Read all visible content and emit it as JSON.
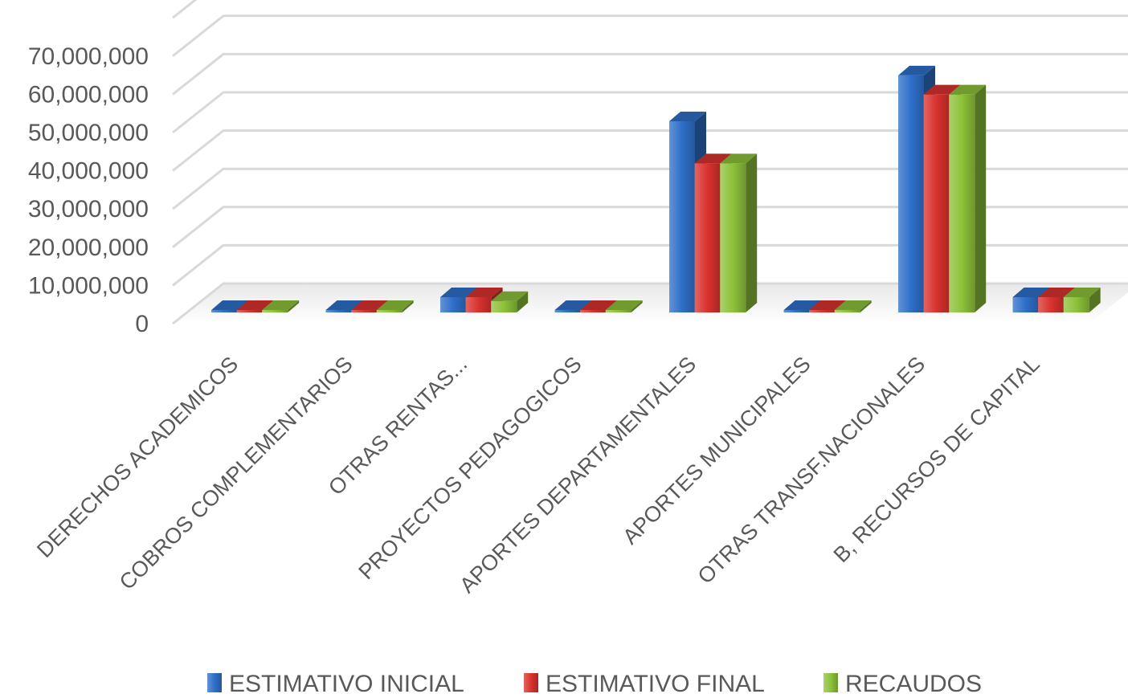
{
  "chart_data": {
    "type": "bar",
    "categories": [
      "DERECHOS ACADEMICOS",
      "COBROS COMPLEMENTARIOS",
      "OTRAS RENTAS...",
      "PROYECTOS PEDAGOGICOS",
      "APORTES DEPARTAMENTALES",
      "APORTES MUNICIPALES",
      "OTRAS TRANSF.NACIONALES",
      "B, RECURSOS DE CAPITAL"
    ],
    "series": [
      {
        "name": "ESTIMATIVO INICIAL",
        "color": "#2E6FC8",
        "values": [
          0,
          0,
          4000000,
          0,
          50000000,
          0,
          62000000,
          4000000
        ]
      },
      {
        "name": "ESTIMATIVO FINAL",
        "color": "#D9322E",
        "values": [
          0,
          0,
          4000000,
          0,
          39000000,
          0,
          57000000,
          4000000
        ]
      },
      {
        "name": "RECAUDOS",
        "color": "#8DC23A",
        "values": [
          0,
          0,
          3000000,
          0,
          39000000,
          0,
          57000000,
          4000000
        ]
      }
    ],
    "y_ticks": [
      "0",
      "10,000,000",
      "20,000,000",
      "30,000,000",
      "40,000,000",
      "50,000,000",
      "60,000,000",
      "70,000,000"
    ],
    "ylim": [
      0,
      80000000
    ],
    "title": "",
    "xlabel": "",
    "ylabel": "",
    "grid": true,
    "legend_position": "bottom",
    "style": "3d-clustered-column"
  }
}
